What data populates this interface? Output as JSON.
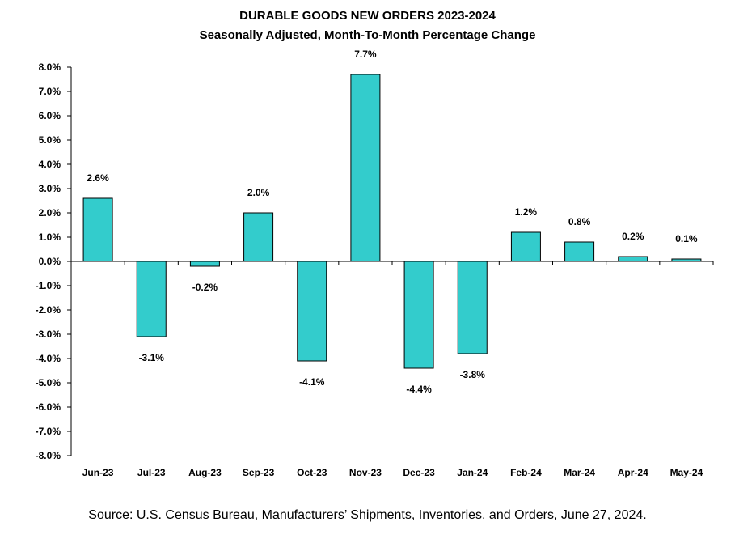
{
  "chart_data": {
    "type": "bar",
    "title": "DURABLE GOODS NEW ORDERS 2023-2024",
    "subtitle": "Seasonally Adjusted,  Month-To-Month Percentage Change",
    "categories": [
      "Jun-23",
      "Jul-23",
      "Aug-23",
      "Sep-23",
      "Oct-23",
      "Nov-23",
      "Dec-23",
      "Jan-24",
      "Feb-24",
      "Mar-24",
      "Apr-24",
      "May-24"
    ],
    "values": [
      2.6,
      -3.1,
      -0.2,
      2.0,
      -4.1,
      7.7,
      -4.4,
      -3.8,
      1.2,
      0.8,
      0.2,
      0.1
    ],
    "data_labels": [
      "2.6%",
      "-3.1%",
      "-0.2%",
      "2.0%",
      "-4.1%",
      "7.7%",
      "-4.4%",
      "-3.8%",
      "1.2%",
      "0.8%",
      "0.2%",
      "0.1%"
    ],
    "y_ticks": [
      8,
      7,
      6,
      5,
      4,
      3,
      2,
      1,
      0,
      -1,
      -2,
      -3,
      -4,
      -5,
      -6,
      -7,
      -8
    ],
    "y_tick_labels": [
      "8.0%",
      "7.0%",
      "6.0%",
      "5.0%",
      "4.0%",
      "3.0%",
      "2.0%",
      "1.0%",
      "0.0%",
      "-1.0%",
      "-2.0%",
      "-3.0%",
      "-4.0%",
      "-5.0%",
      "-6.0%",
      "-7.0%",
      "-8.0%"
    ],
    "ylim": [
      -8,
      8
    ],
    "xlabel": "",
    "ylabel": "",
    "grid": false,
    "bar_color": "#33CCCC",
    "bar_edge_color": "#000000"
  },
  "source": "Source: U.S. Census Bureau, Manufacturers’ Shipments, Inventories, and Orders, June 27, 2024."
}
